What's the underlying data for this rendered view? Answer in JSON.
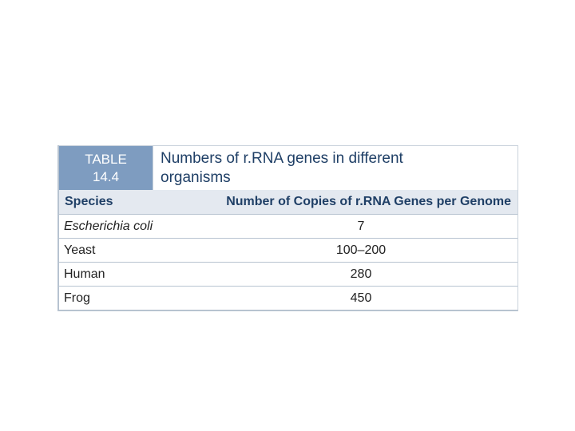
{
  "table": {
    "label_line1": "TABLE",
    "label_line2": "14.4",
    "title_line1": "Numbers of r.RNA genes in different",
    "title_line2": "organisms",
    "columns": [
      "Species",
      "Number of Copies of r.RNA Genes per Genome"
    ],
    "rows": [
      {
        "species": "Escherichia coli",
        "copies": "7",
        "italic": true
      },
      {
        "species": "Yeast",
        "copies": "100–200"
      },
      {
        "species": "Human",
        "copies": "280"
      },
      {
        "species": "Frog",
        "copies": "450"
      }
    ]
  },
  "colors": {
    "label_bg": "#7e9cc0",
    "header_bg": "#e4e9f0",
    "title_text": "#1f3f66"
  }
}
